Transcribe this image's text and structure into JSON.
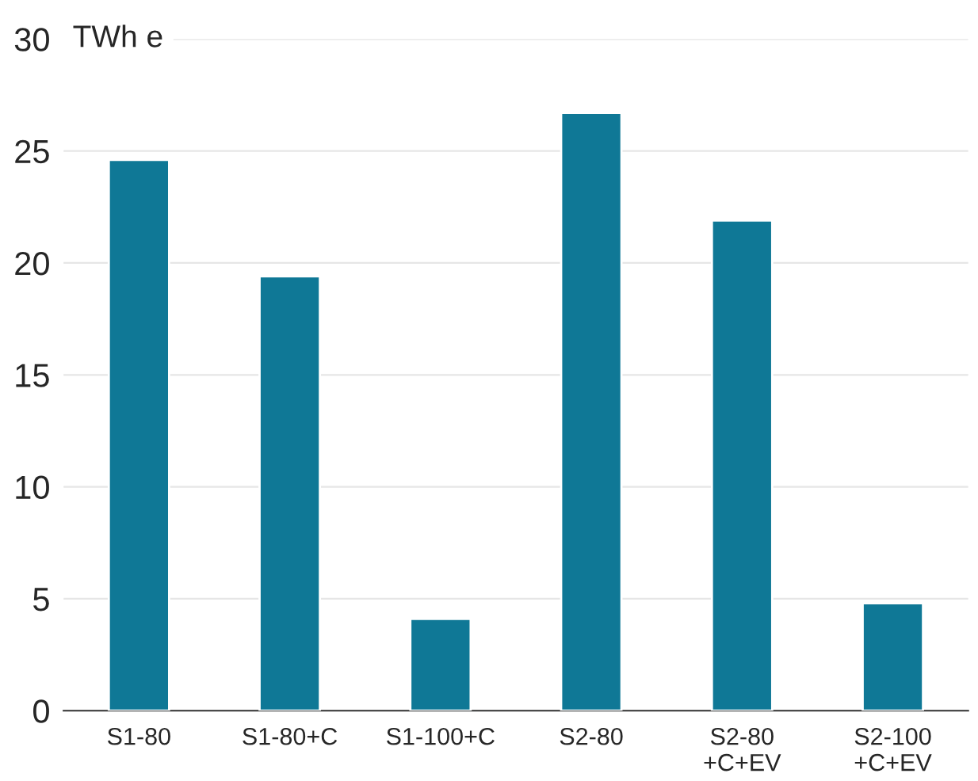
{
  "chart_data": {
    "type": "bar",
    "ylabel": "TWh e",
    "categories": [
      "S1-80",
      "S1-80+C",
      "S1-100+C",
      "S2-80",
      "S2-80\n+C+EV",
      "S2-100\n+C+EV"
    ],
    "values": [
      24.6,
      19.4,
      4.1,
      26.7,
      21.9,
      4.8
    ],
    "color": "#0f7896",
    "ylim": [
      0,
      30
    ],
    "yticks": [
      0,
      5,
      10,
      15,
      20,
      25,
      30
    ],
    "grid": "y"
  }
}
